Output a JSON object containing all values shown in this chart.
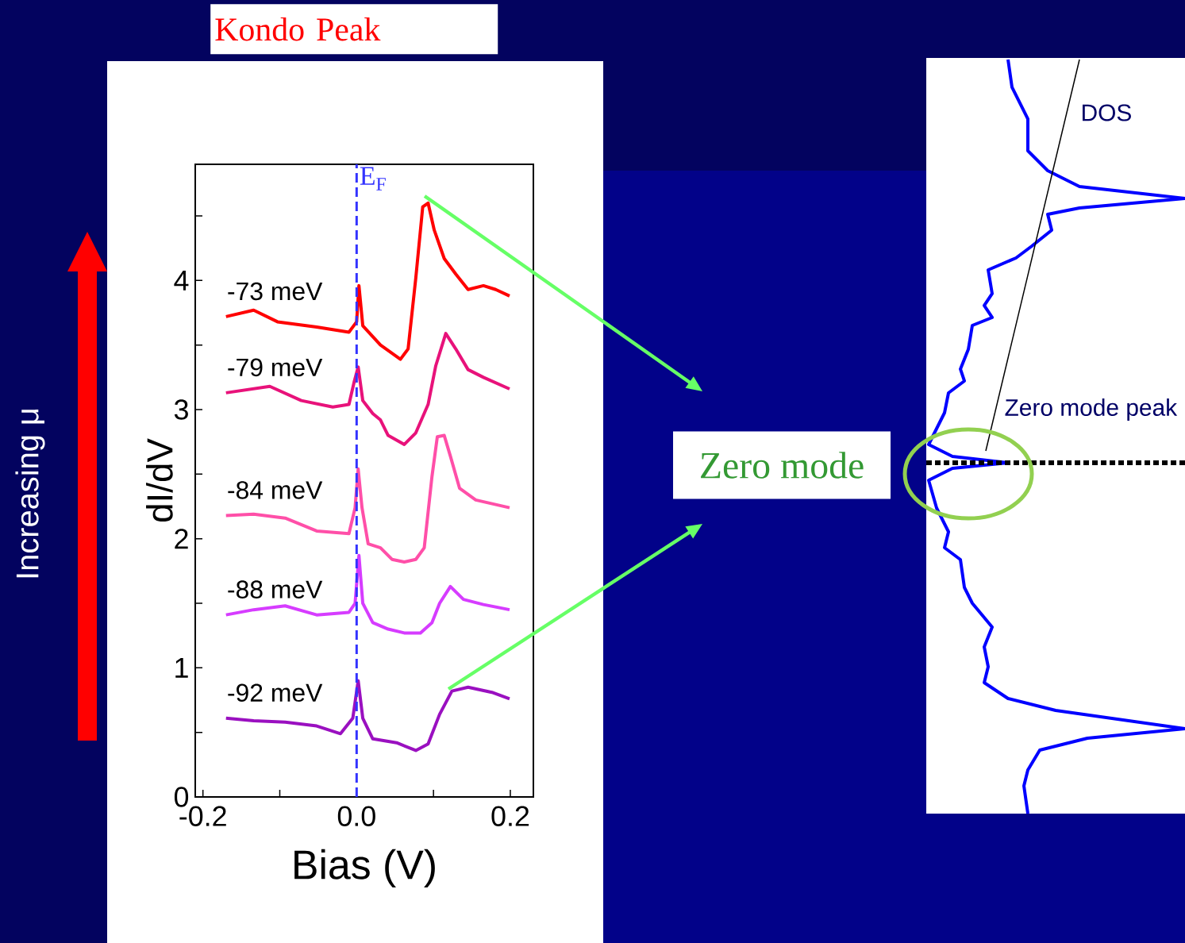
{
  "chart_data": [
    {
      "type": "line",
      "title": "Kondo Peak",
      "xlabel": "Bias (V)",
      "ylabel": "dI/dV",
      "xlim": [
        -0.21,
        0.23
      ],
      "ylim": [
        0,
        4.9
      ],
      "xticks": [
        {
          "value": -0.2,
          "label": "-0.2"
        },
        {
          "value": -0.1,
          "label": null
        },
        {
          "value": 0,
          "label": "0.0"
        },
        {
          "value": 0.1,
          "label": null
        },
        {
          "value": 0.2,
          "label": "0.2"
        }
      ],
      "yticks": [
        0,
        {
          "value": 0.5,
          "label": null
        },
        1,
        {
          "value": 1.5,
          "label": null
        },
        2,
        {
          "value": 2.5,
          "label": null
        },
        3,
        {
          "value": 3.5,
          "label": null
        },
        4,
        {
          "value": 4.5,
          "label": null
        }
      ],
      "series": [
        {
          "name": "-73 meV",
          "color": "#ff0000",
          "x": [
            -0.17,
            -0.134,
            -0.103,
            -0.052,
            -0.01,
            0.0,
            0.003,
            0.008,
            0.031,
            0.057,
            0.067,
            0.077,
            0.086,
            0.093,
            0.101,
            0.114,
            0.129,
            0.145,
            0.165,
            0.181,
            0.199
          ],
          "values": [
            3.72,
            3.77,
            3.68,
            3.64,
            3.6,
            3.68,
            3.96,
            3.65,
            3.5,
            3.39,
            3.47,
            4.02,
            4.57,
            4.6,
            4.39,
            4.17,
            4.05,
            3.93,
            3.96,
            3.93,
            3.88
          ]
        },
        {
          "name": "-79 meV",
          "color": "#e8127a",
          "x": [
            -0.17,
            -0.113,
            -0.072,
            -0.031,
            -0.01,
            -0.003,
            0.002,
            0.008,
            0.021,
            0.031,
            0.041,
            0.062,
            0.077,
            0.093,
            0.103,
            0.116,
            0.129,
            0.145,
            0.165,
            0.199
          ],
          "values": [
            3.13,
            3.18,
            3.07,
            3.02,
            3.04,
            3.22,
            3.33,
            3.07,
            2.97,
            2.92,
            2.8,
            2.73,
            2.82,
            3.04,
            3.34,
            3.59,
            3.47,
            3.31,
            3.25,
            3.16
          ]
        },
        {
          "name": "-84 meV",
          "color": "#ff4fa8",
          "x": [
            -0.17,
            -0.134,
            -0.093,
            -0.052,
            -0.01,
            -0.002,
            0.002,
            0.007,
            0.015,
            0.031,
            0.046,
            0.062,
            0.077,
            0.088,
            0.098,
            0.105,
            0.114,
            0.122,
            0.134,
            0.155,
            0.199
          ],
          "values": [
            2.18,
            2.19,
            2.16,
            2.06,
            2.04,
            2.24,
            2.54,
            2.24,
            1.96,
            1.93,
            1.84,
            1.82,
            1.84,
            1.93,
            2.48,
            2.79,
            2.8,
            2.64,
            2.39,
            2.3,
            2.24
          ]
        },
        {
          "name": "-88 meV",
          "color": "#d63cff",
          "x": [
            -0.17,
            -0.134,
            -0.093,
            -0.052,
            -0.01,
            -0.002,
            0.003,
            0.008,
            0.021,
            0.041,
            0.062,
            0.083,
            0.098,
            0.108,
            0.122,
            0.139,
            0.165,
            0.199
          ],
          "values": [
            1.41,
            1.45,
            1.48,
            1.41,
            1.43,
            1.5,
            1.87,
            1.5,
            1.35,
            1.3,
            1.27,
            1.27,
            1.35,
            1.5,
            1.63,
            1.53,
            1.49,
            1.45
          ]
        },
        {
          "name": "-92 meV",
          "color": "#9a10c0",
          "x": [
            -0.17,
            -0.134,
            -0.093,
            -0.052,
            -0.021,
            -0.005,
            0.002,
            0.008,
            0.021,
            0.052,
            0.077,
            0.093,
            0.108,
            0.124,
            0.145,
            0.176,
            0.199
          ],
          "values": [
            0.61,
            0.59,
            0.58,
            0.55,
            0.49,
            0.61,
            0.9,
            0.61,
            0.45,
            0.42,
            0.36,
            0.41,
            0.64,
            0.82,
            0.85,
            0.81,
            0.76
          ]
        }
      ],
      "ref_lines": [
        {
          "axis": "x",
          "value": 0,
          "label": "E$_{F}$",
          "color": "#3333ff",
          "line_style": "dashed"
        }
      ],
      "annotations": [
        "Increasing μ",
        "Zero mode"
      ]
    },
    {
      "type": "other",
      "annotations": [
        "DOS",
        "Zero mode peak"
      ]
    }
  ]
}
